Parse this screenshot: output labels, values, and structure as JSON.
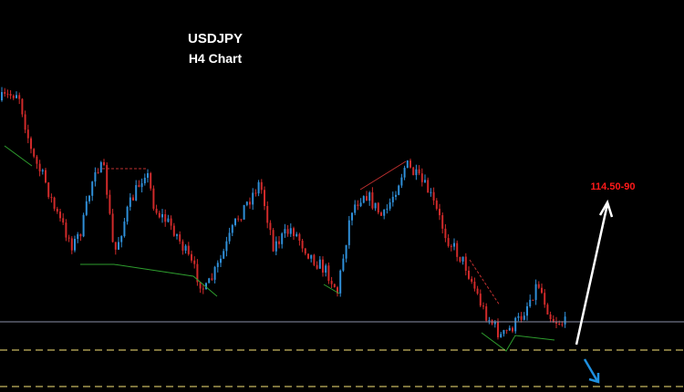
{
  "chart_data": {
    "type": "candlestick",
    "title": "USDJPY",
    "subtitle": "H4 Chart",
    "annotation": "114.50-90"
  }
}
